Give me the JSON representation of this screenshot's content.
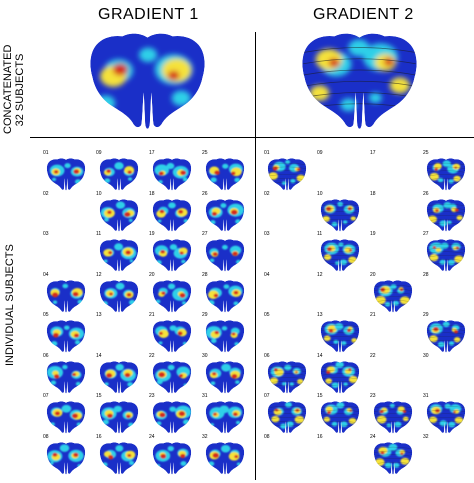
{
  "columns": [
    {
      "title": "GRADIENT 1"
    },
    {
      "title": "GRADIENT 2"
    }
  ],
  "rows": {
    "concatenated": {
      "line1": "CONCATENATED",
      "line2": "32 SUBJECTS"
    },
    "individual": "INDIVIDUAL SUBJECTS"
  },
  "gradient1_subjects": [
    "01",
    "02",
    "03",
    "04",
    "05",
    "06",
    "07",
    "08",
    "09",
    "10",
    "11",
    "12",
    "13",
    "14",
    "15",
    "16",
    "17",
    "18",
    "19",
    "20",
    "21",
    "22",
    "23",
    "24",
    "25",
    "26",
    "27",
    "28",
    "29",
    "30",
    "31",
    "32"
  ],
  "gradient1_present": [
    "01",
    "04",
    "05",
    "06",
    "07",
    "08",
    "09",
    "10",
    "11",
    "12",
    "14",
    "15",
    "16",
    "17",
    "18",
    "19",
    "20",
    "21",
    "22",
    "23",
    "24",
    "25",
    "26",
    "27",
    "28",
    "29",
    "30",
    "31",
    "32"
  ],
  "gradient2_subjects": [
    "01",
    "02",
    "03",
    "04",
    "05",
    "06",
    "07",
    "08",
    "09",
    "10",
    "11",
    "12",
    "13",
    "14",
    "15",
    "16",
    "17",
    "18",
    "19",
    "20",
    "21",
    "22",
    "23",
    "24",
    "25",
    "26",
    "27",
    "28",
    "29",
    "30",
    "31",
    "32"
  ],
  "gradient2_present": [
    "01",
    "06",
    "07",
    "10",
    "11",
    "13",
    "14",
    "15",
    "20",
    "23",
    "24",
    "25",
    "26",
    "27",
    "29",
    "31"
  ],
  "colors": {
    "blue": "#1a2fc8",
    "cyan": "#2fd0e8",
    "yellow": "#f5e23a",
    "red": "#d42b1e",
    "divider": "#000000"
  }
}
